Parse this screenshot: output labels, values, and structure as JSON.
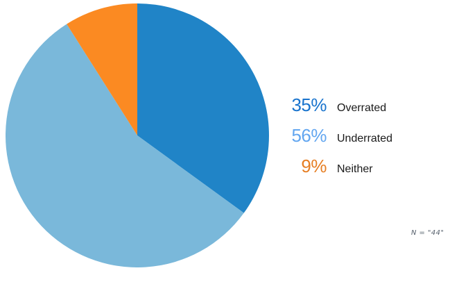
{
  "chart_data": {
    "type": "pie",
    "title": "",
    "categories": [
      "Overrated",
      "Underrated",
      "Neither"
    ],
    "values": [
      35,
      56,
      9
    ],
    "unit": "%",
    "colors": [
      "#2084c7",
      "#7ab8da",
      "#fb8a22"
    ],
    "start_angle_deg": 0,
    "direction": "clockwise",
    "legend_position": "right",
    "note": "N = \"44\""
  },
  "legend": {
    "items": [
      {
        "pct": "35%",
        "label": "Overrated",
        "color": "#1873cd"
      },
      {
        "pct": "56%",
        "label": "Underrated",
        "color": "#62a6f0"
      },
      {
        "pct": "9%",
        "label": "Neither",
        "color": "#e67e23"
      }
    ]
  },
  "footnote": {
    "text": "N = \"44\"",
    "color": "#56606c"
  }
}
